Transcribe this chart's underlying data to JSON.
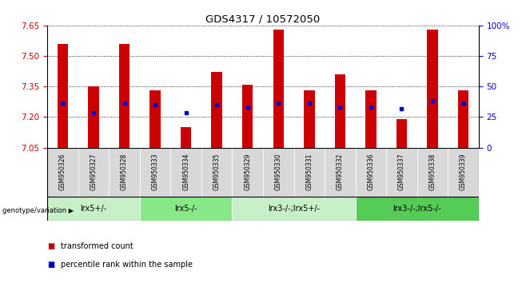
{
  "title": "GDS4317 / 10572050",
  "samples": [
    "GSM950326",
    "GSM950327",
    "GSM950328",
    "GSM950333",
    "GSM950334",
    "GSM950335",
    "GSM950329",
    "GSM950330",
    "GSM950331",
    "GSM950332",
    "GSM950336",
    "GSM950337",
    "GSM950338",
    "GSM950339"
  ],
  "bar_tops": [
    7.56,
    7.35,
    7.56,
    7.33,
    7.15,
    7.42,
    7.36,
    7.63,
    7.33,
    7.41,
    7.33,
    7.19,
    7.63,
    7.33
  ],
  "bar_bottom": 7.05,
  "percentile_values": [
    7.27,
    7.22,
    7.27,
    7.26,
    7.22,
    7.26,
    7.25,
    7.27,
    7.27,
    7.25,
    7.25,
    7.24,
    7.28,
    7.27
  ],
  "ylim": [
    7.05,
    7.65
  ],
  "yticks": [
    7.05,
    7.2,
    7.35,
    7.5,
    7.65
  ],
  "right_yticks": [
    0,
    25,
    50,
    75,
    100
  ],
  "right_ytick_labels": [
    "0",
    "25",
    "50",
    "75",
    "100%"
  ],
  "bar_color": "#cc0000",
  "dot_color": "#0000cc",
  "groups": [
    {
      "label": "lrx5+/-",
      "start": 0,
      "end": 3,
      "color": "#c8f0c8"
    },
    {
      "label": "lrx5-/-",
      "start": 3,
      "end": 6,
      "color": "#88e888"
    },
    {
      "label": "lrx3-/-;lrx5+/-",
      "start": 6,
      "end": 10,
      "color": "#c8f0c8"
    },
    {
      "label": "lrx3-/-;lrx5-/-",
      "start": 10,
      "end": 14,
      "color": "#55cc55"
    }
  ],
  "sample_cell_color": "#d8d8d8",
  "legend_items": [
    {
      "label": "transformed count",
      "color": "#cc0000"
    },
    {
      "label": "percentile rank within the sample",
      "color": "#0000cc"
    }
  ],
  "xlabel_label": "genotype/variation",
  "background_color": "#ffffff",
  "tick_label_color_left": "#cc0000",
  "tick_label_color_right": "#0000cc"
}
